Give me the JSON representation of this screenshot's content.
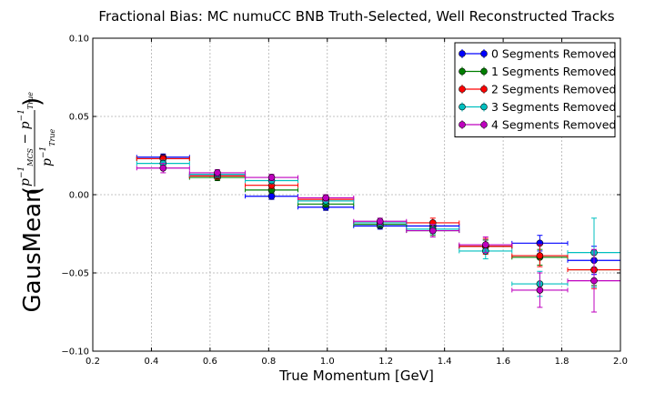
{
  "chart_data": {
    "type": "scatter",
    "title": "Fractional Bias: MC numuCC BNB Truth-Selected, Well Reconstructed Tracks",
    "xlabel": "True Momentum [GeV]",
    "ylabel": "GausMean",
    "xlim": [
      0.2,
      2.0
    ],
    "ylim": [
      -0.1,
      0.1
    ],
    "xticks": [
      "0.2",
      "0.4",
      "0.6",
      "0.8",
      "1.0",
      "1.2",
      "1.4",
      "1.6",
      "1.8",
      "2.0"
    ],
    "yticks": [
      "0.10",
      "0.05",
      "0.00",
      "−0.05",
      "−0.10"
    ],
    "grid": true,
    "legend_position": "top-right",
    "bin_edges": [
      0.35,
      0.53,
      0.72,
      0.9,
      1.09,
      1.27,
      1.45,
      1.63,
      1.82,
      2.0
    ],
    "x": [
      0.44,
      0.625,
      0.81,
      0.995,
      1.18,
      1.36,
      1.54,
      1.725,
      1.91
    ],
    "series": [
      {
        "name": "0 Segments Removed",
        "color": "#0000ff",
        "values": [
          0.024,
          0.012,
          -0.001,
          -0.008,
          -0.02,
          -0.02,
          -0.033,
          -0.031,
          -0.042
        ],
        "errors": [
          0.002,
          0.002,
          0.002,
          0.002,
          0.002,
          0.003,
          0.004,
          0.005,
          0.009
        ]
      },
      {
        "name": "1 Segments Removed",
        "color": "#007f00",
        "values": [
          0.023,
          0.011,
          0.003,
          -0.006,
          -0.019,
          -0.023,
          -0.033,
          -0.04,
          -0.048
        ],
        "errors": [
          0.002,
          0.002,
          0.002,
          0.002,
          0.002,
          0.003,
          0.004,
          0.005,
          0.01
        ]
      },
      {
        "name": "2 Segments Removed",
        "color": "#ff0000",
        "values": [
          0.023,
          0.012,
          0.006,
          -0.003,
          -0.018,
          -0.018,
          -0.033,
          -0.039,
          -0.048
        ],
        "errors": [
          0.002,
          0.002,
          0.002,
          0.002,
          0.002,
          0.003,
          0.005,
          0.007,
          0.012
        ]
      },
      {
        "name": "3 Segments Removed",
        "color": "#00bfbf",
        "values": [
          0.02,
          0.013,
          0.009,
          -0.004,
          -0.018,
          -0.022,
          -0.036,
          -0.057,
          -0.037
        ],
        "errors": [
          0.002,
          0.002,
          0.002,
          0.002,
          0.002,
          0.003,
          0.005,
          0.008,
          0.022
        ]
      },
      {
        "name": "4 Segments Removed",
        "color": "#bf00bf",
        "values": [
          0.017,
          0.014,
          0.011,
          -0.002,
          -0.017,
          -0.023,
          -0.032,
          -0.061,
          -0.055
        ],
        "errors": [
          0.003,
          0.002,
          0.002,
          0.002,
          0.002,
          0.004,
          0.005,
          0.011,
          0.02
        ]
      }
    ]
  }
}
